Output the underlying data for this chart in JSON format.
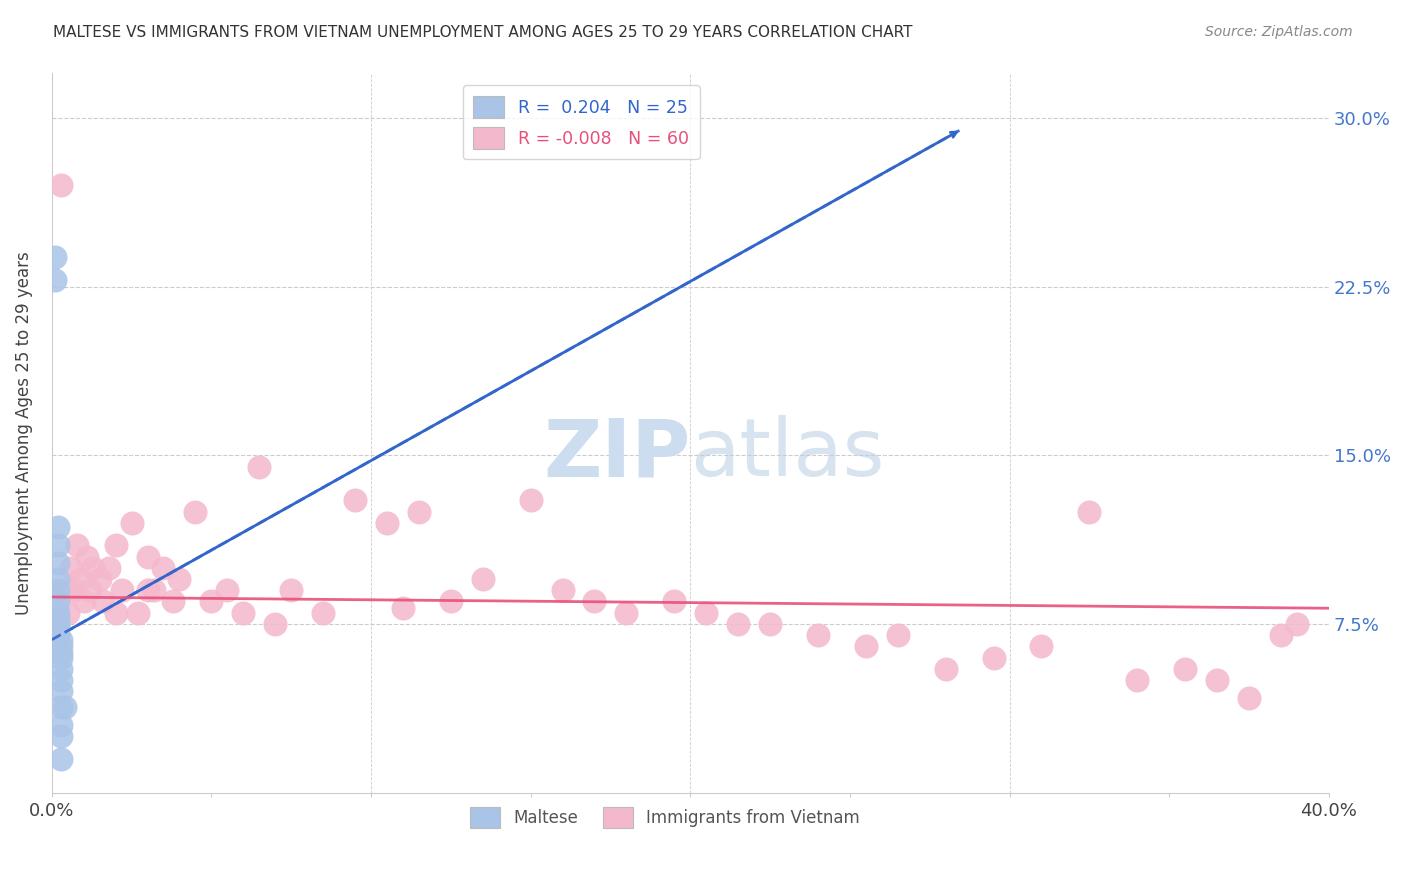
{
  "title": "MALTESE VS IMMIGRANTS FROM VIETNAM UNEMPLOYMENT AMONG AGES 25 TO 29 YEARS CORRELATION CHART",
  "source": "Source: ZipAtlas.com",
  "ylabel": "Unemployment Among Ages 25 to 29 years",
  "xlim": [
    0.0,
    0.4
  ],
  "ylim": [
    0.0,
    0.32
  ],
  "maltese_R": 0.204,
  "maltese_N": 25,
  "vietnam_R": -0.008,
  "vietnam_N": 60,
  "maltese_color": "#aac4e8",
  "vietnam_color": "#f4b8cc",
  "maltese_trend_color": "#3366cc",
  "vietnam_trend_color": "#e8507a",
  "watermark_color": "#ccddf0",
  "maltese_x": [
    0.001,
    0.001,
    0.002,
    0.002,
    0.002,
    0.002,
    0.002,
    0.002,
    0.002,
    0.002,
    0.002,
    0.002,
    0.002,
    0.003,
    0.003,
    0.003,
    0.003,
    0.003,
    0.003,
    0.003,
    0.003,
    0.003,
    0.003,
    0.003,
    0.004
  ],
  "maltese_y": [
    0.228,
    0.238,
    0.118,
    0.11,
    0.102,
    0.095,
    0.09,
    0.085,
    0.08,
    0.077,
    0.075,
    0.073,
    0.07,
    0.068,
    0.065,
    0.062,
    0.06,
    0.055,
    0.05,
    0.045,
    0.038,
    0.03,
    0.025,
    0.015,
    0.038
  ],
  "vietnam_x": [
    0.003,
    0.004,
    0.005,
    0.006,
    0.007,
    0.008,
    0.009,
    0.01,
    0.011,
    0.012,
    0.013,
    0.015,
    0.016,
    0.018,
    0.02,
    0.022,
    0.025,
    0.027,
    0.03,
    0.032,
    0.035,
    0.038,
    0.04,
    0.045,
    0.05,
    0.055,
    0.06,
    0.065,
    0.075,
    0.085,
    0.095,
    0.105,
    0.115,
    0.125,
    0.135,
    0.15,
    0.16,
    0.17,
    0.18,
    0.195,
    0.205,
    0.215,
    0.225,
    0.24,
    0.255,
    0.265,
    0.28,
    0.295,
    0.31,
    0.325,
    0.34,
    0.355,
    0.365,
    0.375,
    0.385,
    0.39,
    0.02,
    0.03,
    0.07,
    0.11
  ],
  "vietnam_y": [
    0.27,
    0.09,
    0.08,
    0.1,
    0.09,
    0.11,
    0.095,
    0.085,
    0.105,
    0.09,
    0.1,
    0.095,
    0.085,
    0.1,
    0.11,
    0.09,
    0.12,
    0.08,
    0.105,
    0.09,
    0.1,
    0.085,
    0.095,
    0.125,
    0.085,
    0.09,
    0.08,
    0.145,
    0.09,
    0.08,
    0.13,
    0.12,
    0.125,
    0.085,
    0.095,
    0.13,
    0.09,
    0.085,
    0.08,
    0.085,
    0.08,
    0.075,
    0.075,
    0.07,
    0.065,
    0.07,
    0.055,
    0.06,
    0.065,
    0.125,
    0.05,
    0.055,
    0.05,
    0.042,
    0.07,
    0.075,
    0.08,
    0.09,
    0.075,
    0.082
  ]
}
